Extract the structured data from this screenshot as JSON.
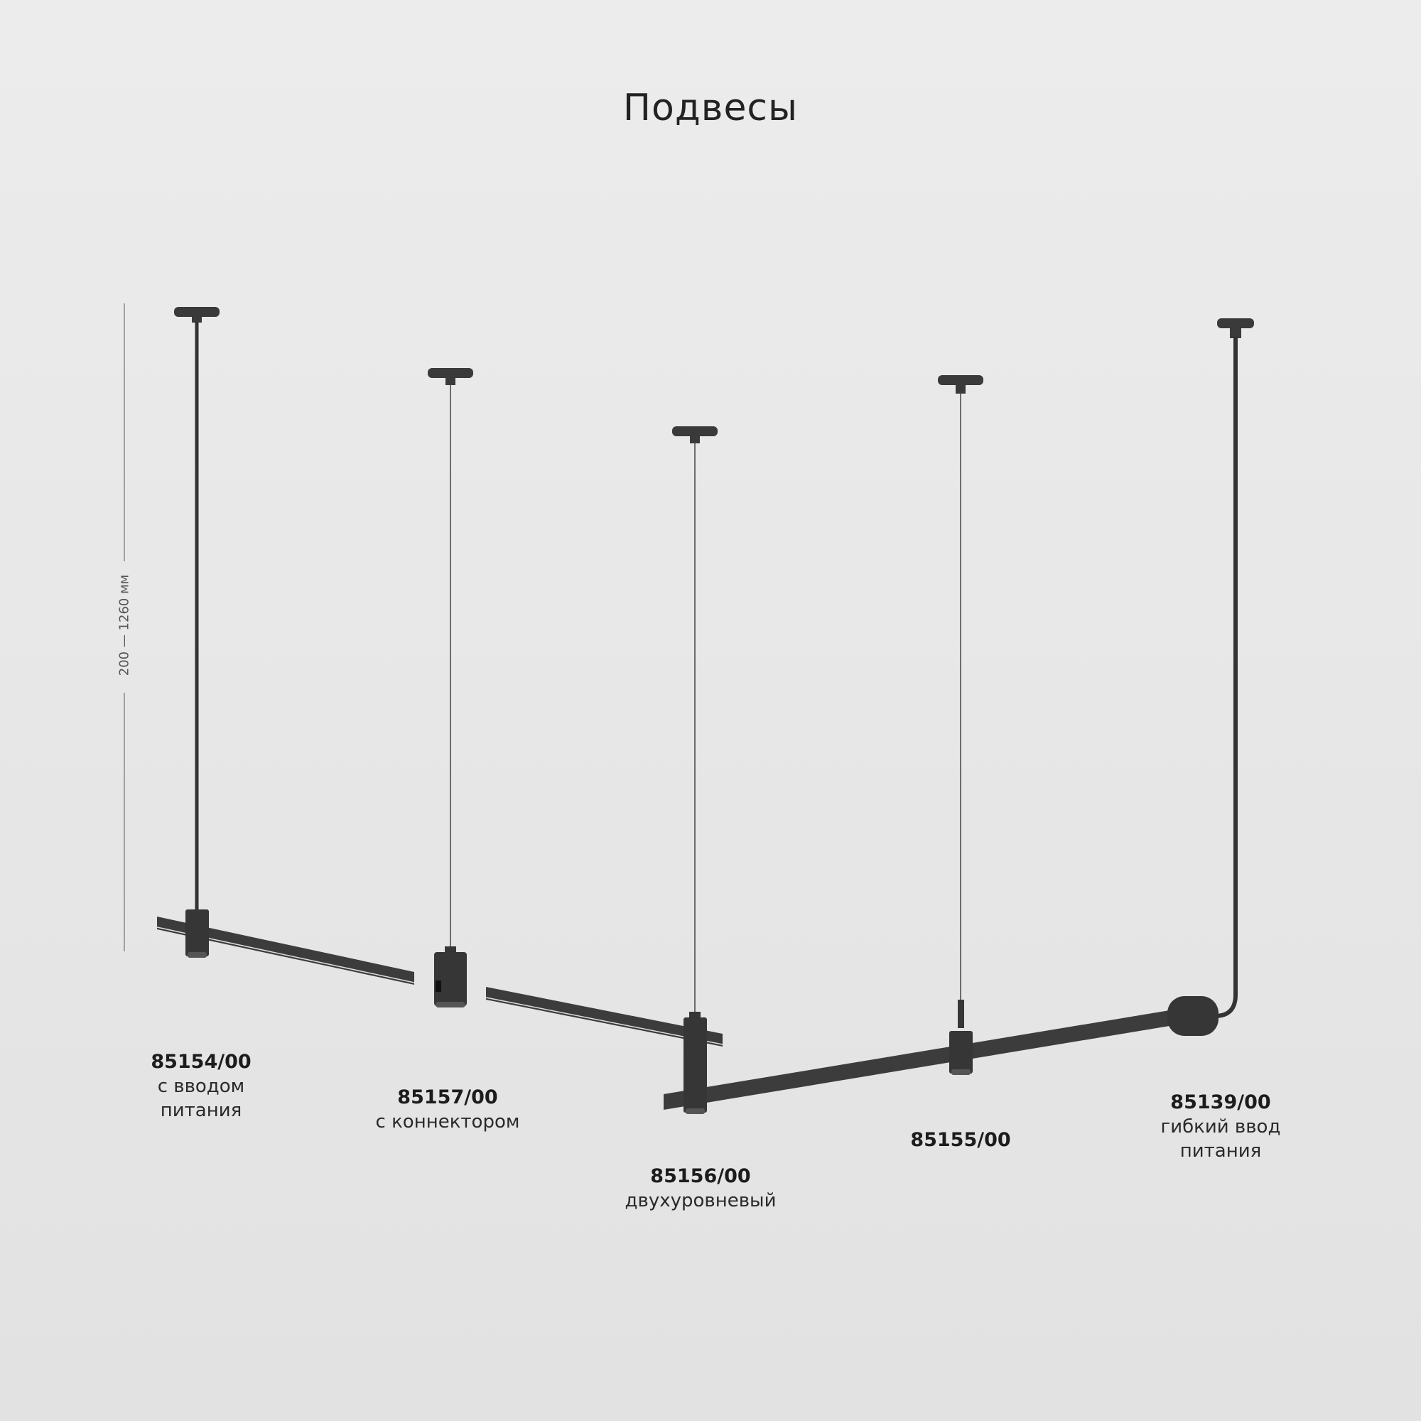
{
  "title": "Подвесы",
  "dimension": "200 — 1260 мм",
  "products": [
    {
      "code": "85154/00",
      "lines": [
        "с вводом",
        "питания"
      ]
    },
    {
      "code": "85157/00",
      "lines": [
        "с коннектором"
      ]
    },
    {
      "code": "85156/00",
      "lines": [
        "двухуровневый"
      ]
    },
    {
      "code": "85155/00",
      "lines": []
    },
    {
      "code": "85139/00",
      "lines": [
        "гибкий ввод",
        "питания"
      ]
    }
  ],
  "colors": {
    "background": "#e6e6e6",
    "fixture": "#3a3a3a",
    "text": "#1e1e1e"
  }
}
